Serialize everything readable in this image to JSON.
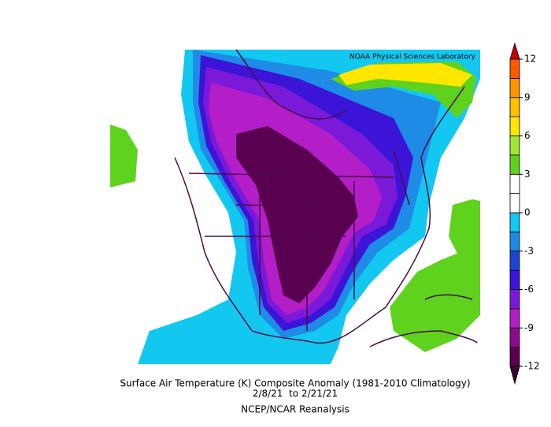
{
  "map": {
    "credit": "NOAA Physical Sciences Laboratory",
    "title": "Surface Air Temperature (K) Composite Anomaly (1981-2010 Climatology)",
    "dates": "2/8/21  to 2/21/21",
    "source": "NCEP/NCAR Reanalysis"
  },
  "colorbar": {
    "range": [
      -12,
      12
    ],
    "ticks": [
      -12,
      -9,
      -6,
      -3,
      0,
      3,
      6,
      9,
      12
    ],
    "colors": [
      "#5a0050",
      "#8c0a8c",
      "#b41ec8",
      "#7a1ad8",
      "#3c14d8",
      "#1e46d2",
      "#1e8ce6",
      "#12c8f0",
      "#ffffff",
      "#ffffff",
      "#5fd21e",
      "#a0e632",
      "#ffe600",
      "#ffc000",
      "#ff9600",
      "#ff5a00"
    ],
    "under_color": "#3c0032",
    "over_color": "#c80000"
  }
}
